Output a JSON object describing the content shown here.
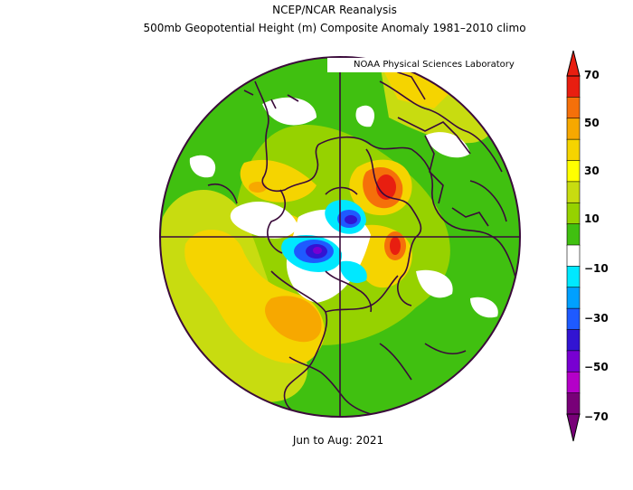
{
  "title": "NCEP/NCAR Reanalysis",
  "subtitle": "500mb Geopotential Height (m) Composite Anomaly 1981–2010 climo",
  "credit": "NOAA Physical Sciences Laboratory",
  "period": "Jun to Aug: 2021",
  "colorbar": {
    "labels": [
      "70",
      "50",
      "30",
      "10",
      "−10",
      "−30",
      "−50",
      "−70"
    ],
    "colors": [
      "#e81e10",
      "#f5700a",
      "#f7a800",
      "#f5d400",
      "#ffff00",
      "#c8dc10",
      "#96d200",
      "#40c010",
      "#ffffff",
      "#00e8ff",
      "#00a0ff",
      "#1e5aff",
      "#3214d2",
      "#7800d2",
      "#b400c8",
      "#780078"
    ]
  }
}
